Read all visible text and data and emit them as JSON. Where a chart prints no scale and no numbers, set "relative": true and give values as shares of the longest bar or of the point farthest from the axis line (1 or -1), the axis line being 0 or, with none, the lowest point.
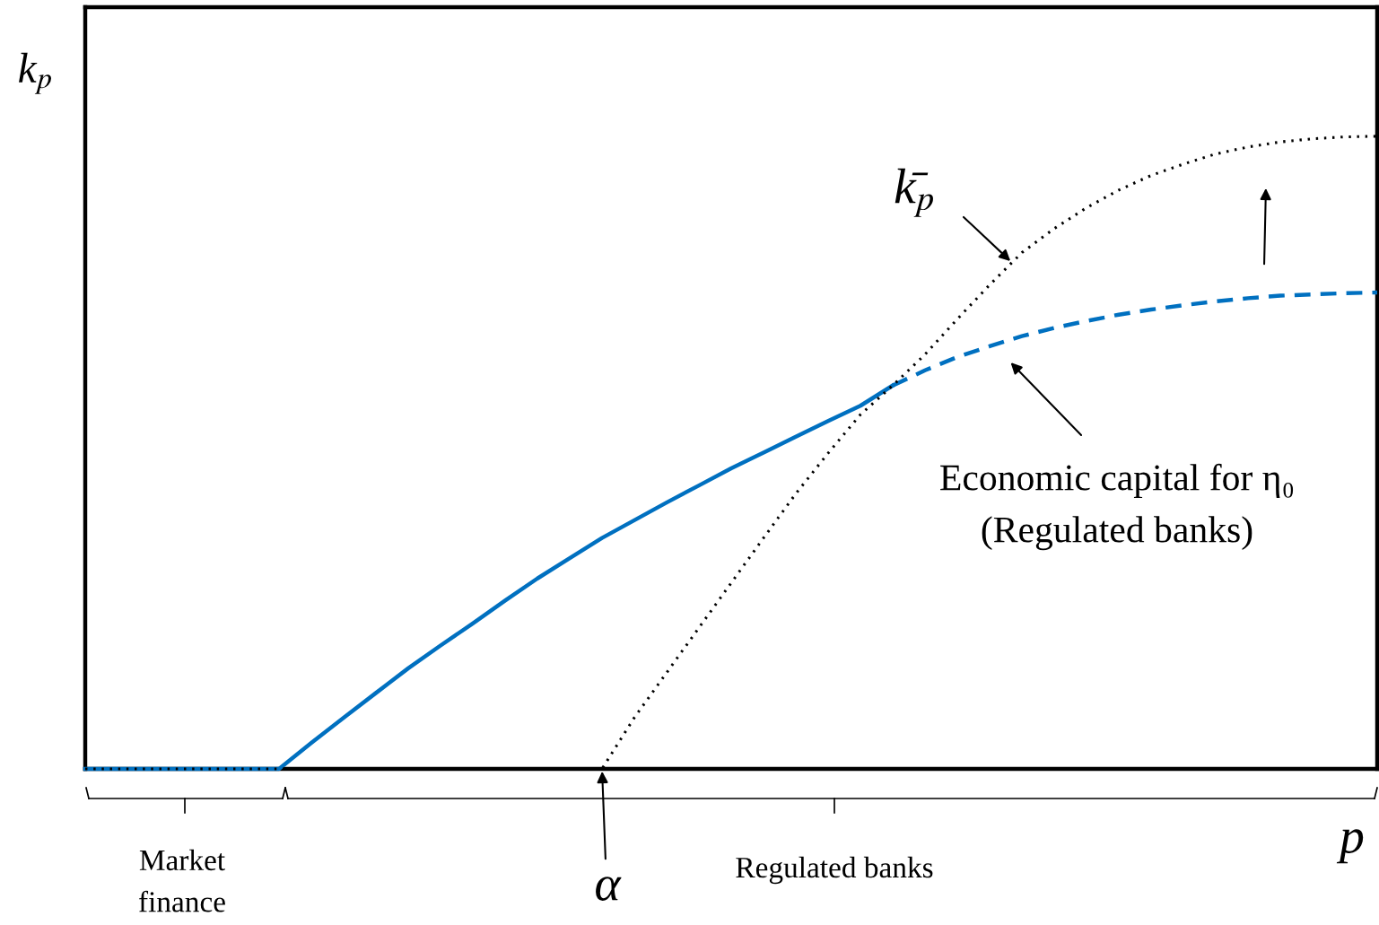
{
  "chart_data": {
    "type": "line",
    "relative": true,
    "xlabel": "p",
    "ylabel": "k$_{p}$",
    "legend": false,
    "tick_labels": false,
    "categories": [
      null,
      null,
      null,
      null,
      null,
      null,
      null,
      null,
      null,
      null,
      null,
      null,
      null,
      null,
      null,
      null,
      null,
      null,
      null,
      null,
      null,
      null,
      null,
      null,
      null,
      null,
      null,
      null,
      null,
      null,
      null,
      null,
      null,
      null,
      null,
      null,
      null,
      null,
      null,
      null,
      null
    ],
    "series": [
      {
        "color": "#0070c0",
        "line_style": "solid",
        "values": [
          0,
          0,
          0,
          0,
          0,
          0,
          0,
          0.041,
          0.081,
          0.12,
          0.159,
          0.195,
          0.23,
          0.266,
          0.301,
          0.333,
          0.365,
          0.393,
          0.421,
          0.448,
          0.475,
          0.5,
          0.525,
          0.55,
          0.574,
          0.606,
          null,
          null,
          null,
          null,
          null,
          null,
          null,
          null,
          null,
          null,
          null,
          null,
          null,
          null,
          null
        ]
      },
      {
        "color": "#0070c0",
        "line_style": "dashed",
        "values": [
          null,
          null,
          null,
          null,
          null,
          null,
          null,
          null,
          null,
          null,
          null,
          null,
          null,
          null,
          null,
          null,
          null,
          null,
          null,
          null,
          null,
          null,
          null,
          null,
          null,
          0.606,
          0.63,
          0.651,
          0.668,
          0.684,
          0.697,
          0.708,
          0.718,
          0.726,
          0.733,
          0.739,
          0.744,
          0.748,
          0.75,
          0.752,
          0.753
        ]
      },
      {
        "color": "#000000",
        "line_style": "dotted",
        "values": [
          0,
          0,
          0,
          0,
          0,
          0,
          0,
          0,
          0,
          0,
          0,
          0,
          0,
          0,
          0,
          0,
          0,
          0.081,
          0.152,
          0.223,
          0.294,
          0.365,
          0.435,
          0.499,
          0.56,
          0.606,
          0.655,
          0.711,
          0.765,
          0.816,
          0.854,
          0.887,
          0.915,
          0.938,
          0.956,
          0.972,
          0.983,
          0.991,
          0.996,
          0.999,
          1
        ]
      }
    ],
    "annotations": [
      "k̄$_{p}$",
      "Economic capital for η₀\n(Regulated banks)",
      "α",
      "Market\nfinance",
      "Regulated banks"
    ]
  }
}
